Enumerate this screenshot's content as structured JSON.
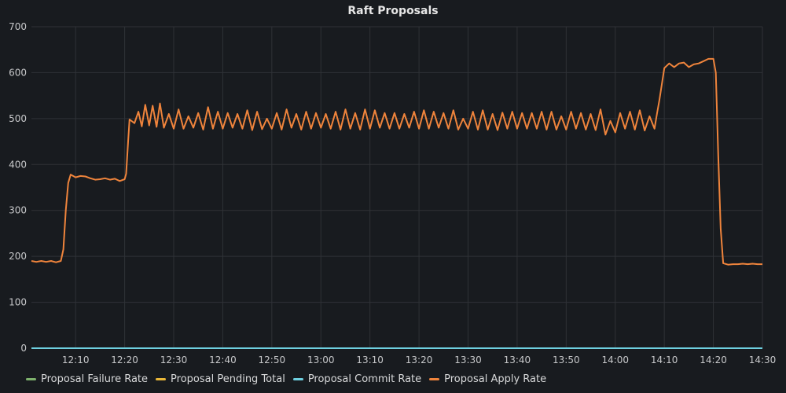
{
  "panel": {
    "title": "Raft Proposals"
  },
  "chart_data": {
    "type": "line",
    "title": "Raft Proposals",
    "xlabel": "",
    "ylabel": "",
    "x_range": [
      "12:01",
      "14:30"
    ],
    "ylim": [
      0,
      700
    ],
    "y_ticks": [
      0,
      100,
      200,
      300,
      400,
      500,
      600,
      700
    ],
    "x_ticks": [
      "12:10",
      "12:20",
      "12:30",
      "12:40",
      "12:50",
      "13:00",
      "13:10",
      "13:20",
      "13:30",
      "13:40",
      "13:50",
      "14:00",
      "14:10",
      "14:20",
      "14:30"
    ],
    "grid": true,
    "legend_position": "bottom-left",
    "series": [
      {
        "name": "Proposal Failure Rate",
        "color": "#7eb26d",
        "points": [
          [
            "12:01",
            0
          ],
          [
            "14:30",
            0
          ]
        ]
      },
      {
        "name": "Proposal Pending Total",
        "color": "#eab839",
        "points": [
          [
            "12:01",
            0
          ],
          [
            "14:30",
            0
          ]
        ]
      },
      {
        "name": "Proposal Commit Rate",
        "color": "#6ed0e0",
        "points": [
          [
            "12:01",
            0
          ],
          [
            "14:30",
            0
          ]
        ]
      },
      {
        "name": "Proposal Apply Rate",
        "color": "#ef843c",
        "points": [
          [
            "12:01",
            190
          ],
          [
            "12:02",
            188
          ],
          [
            "12:03",
            190
          ],
          [
            "12:04",
            188
          ],
          [
            "12:05",
            190
          ],
          [
            "12:06",
            187
          ],
          [
            "12:07",
            190
          ],
          [
            "12:07.5",
            215
          ],
          [
            "12:08",
            300
          ],
          [
            "12:08.5",
            360
          ],
          [
            "12:09",
            378
          ],
          [
            "12:10",
            372
          ],
          [
            "12:11",
            375
          ],
          [
            "12:12",
            374
          ],
          [
            "12:13",
            370
          ],
          [
            "12:14",
            367
          ],
          [
            "12:15",
            368
          ],
          [
            "12:16",
            370
          ],
          [
            "12:17",
            367
          ],
          [
            "12:18",
            369
          ],
          [
            "12:19",
            364
          ],
          [
            "12:20",
            368
          ],
          [
            "12:20.3",
            380
          ],
          [
            "12:20.7",
            450
          ],
          [
            "12:21",
            498
          ],
          [
            "12:22",
            490
          ],
          [
            "12:22.8",
            515
          ],
          [
            "12:23.5",
            483
          ],
          [
            "12:24.2",
            530
          ],
          [
            "12:25",
            485
          ],
          [
            "12:25.7",
            528
          ],
          [
            "12:26.5",
            482
          ],
          [
            "12:27.2",
            533
          ],
          [
            "12:28",
            480
          ],
          [
            "12:29",
            510
          ],
          [
            "12:30",
            478
          ],
          [
            "12:31",
            520
          ],
          [
            "12:32",
            478
          ],
          [
            "12:33",
            505
          ],
          [
            "12:34",
            480
          ],
          [
            "12:35",
            512
          ],
          [
            "12:36",
            476
          ],
          [
            "12:37",
            525
          ],
          [
            "12:38",
            478
          ],
          [
            "12:39",
            515
          ],
          [
            "12:40",
            478
          ],
          [
            "12:41",
            512
          ],
          [
            "12:42",
            480
          ],
          [
            "12:43",
            510
          ],
          [
            "12:44",
            478
          ],
          [
            "12:45",
            518
          ],
          [
            "12:46",
            475
          ],
          [
            "12:47",
            515
          ],
          [
            "12:48",
            477
          ],
          [
            "12:49",
            500
          ],
          [
            "12:50",
            478
          ],
          [
            "12:51",
            512
          ],
          [
            "12:52",
            476
          ],
          [
            "12:53",
            520
          ],
          [
            "12:54",
            480
          ],
          [
            "12:55",
            510
          ],
          [
            "12:56",
            476
          ],
          [
            "12:57",
            515
          ],
          [
            "12:58",
            478
          ],
          [
            "12:59",
            512
          ],
          [
            "13:00",
            480
          ],
          [
            "13:01",
            510
          ],
          [
            "13:02",
            478
          ],
          [
            "13:03",
            515
          ],
          [
            "13:04",
            476
          ],
          [
            "13:05",
            520
          ],
          [
            "13:06",
            478
          ],
          [
            "13:07",
            512
          ],
          [
            "13:08",
            476
          ],
          [
            "13:09",
            520
          ],
          [
            "13:10",
            478
          ],
          [
            "13:11",
            518
          ],
          [
            "13:12",
            480
          ],
          [
            "13:13",
            512
          ],
          [
            "13:14",
            478
          ],
          [
            "13:15",
            512
          ],
          [
            "13:16",
            478
          ],
          [
            "13:17",
            510
          ],
          [
            "13:18",
            480
          ],
          [
            "13:19",
            515
          ],
          [
            "13:20",
            478
          ],
          [
            "13:21",
            518
          ],
          [
            "13:22",
            478
          ],
          [
            "13:23",
            515
          ],
          [
            "13:24",
            480
          ],
          [
            "13:25",
            512
          ],
          [
            "13:26",
            478
          ],
          [
            "13:27",
            518
          ],
          [
            "13:28",
            476
          ],
          [
            "13:29",
            500
          ],
          [
            "13:30",
            478
          ],
          [
            "13:31",
            515
          ],
          [
            "13:32",
            476
          ],
          [
            "13:33",
            518
          ],
          [
            "13:34",
            476
          ],
          [
            "13:35",
            510
          ],
          [
            "13:36",
            475
          ],
          [
            "13:37",
            513
          ],
          [
            "13:38",
            478
          ],
          [
            "13:39",
            515
          ],
          [
            "13:40",
            478
          ],
          [
            "13:41",
            512
          ],
          [
            "13:42",
            478
          ],
          [
            "13:43",
            512
          ],
          [
            "13:44",
            478
          ],
          [
            "13:45",
            515
          ],
          [
            "13:46",
            476
          ],
          [
            "13:47",
            515
          ],
          [
            "13:48",
            476
          ],
          [
            "13:49",
            505
          ],
          [
            "13:50",
            476
          ],
          [
            "13:51",
            515
          ],
          [
            "13:52",
            478
          ],
          [
            "13:53",
            512
          ],
          [
            "13:54",
            476
          ],
          [
            "13:55",
            510
          ],
          [
            "13:56",
            475
          ],
          [
            "13:57",
            520
          ],
          [
            "13:58",
            465
          ],
          [
            "13:59",
            495
          ],
          [
            "14:00",
            470
          ],
          [
            "14:01",
            512
          ],
          [
            "14:02",
            478
          ],
          [
            "14:03",
            515
          ],
          [
            "14:04",
            476
          ],
          [
            "14:05",
            518
          ],
          [
            "14:06",
            474
          ],
          [
            "14:07",
            505
          ],
          [
            "14:08",
            478
          ],
          [
            "14:08.5",
            510
          ],
          [
            "14:09",
            540
          ],
          [
            "14:10",
            610
          ],
          [
            "14:11",
            620
          ],
          [
            "14:12",
            612
          ],
          [
            "14:13",
            620
          ],
          [
            "14:14",
            622
          ],
          [
            "14:15",
            612
          ],
          [
            "14:16",
            618
          ],
          [
            "14:17",
            620
          ],
          [
            "14:18",
            625
          ],
          [
            "14:19",
            630
          ],
          [
            "14:20",
            630
          ],
          [
            "14:20.5",
            600
          ],
          [
            "14:21",
            420
          ],
          [
            "14:21.5",
            260
          ],
          [
            "14:22",
            185
          ],
          [
            "14:23",
            182
          ],
          [
            "14:24",
            183
          ],
          [
            "14:25",
            183
          ],
          [
            "14:26",
            184
          ],
          [
            "14:27",
            183
          ],
          [
            "14:28",
            184
          ],
          [
            "14:29",
            183
          ],
          [
            "14:30",
            183
          ]
        ]
      }
    ]
  }
}
